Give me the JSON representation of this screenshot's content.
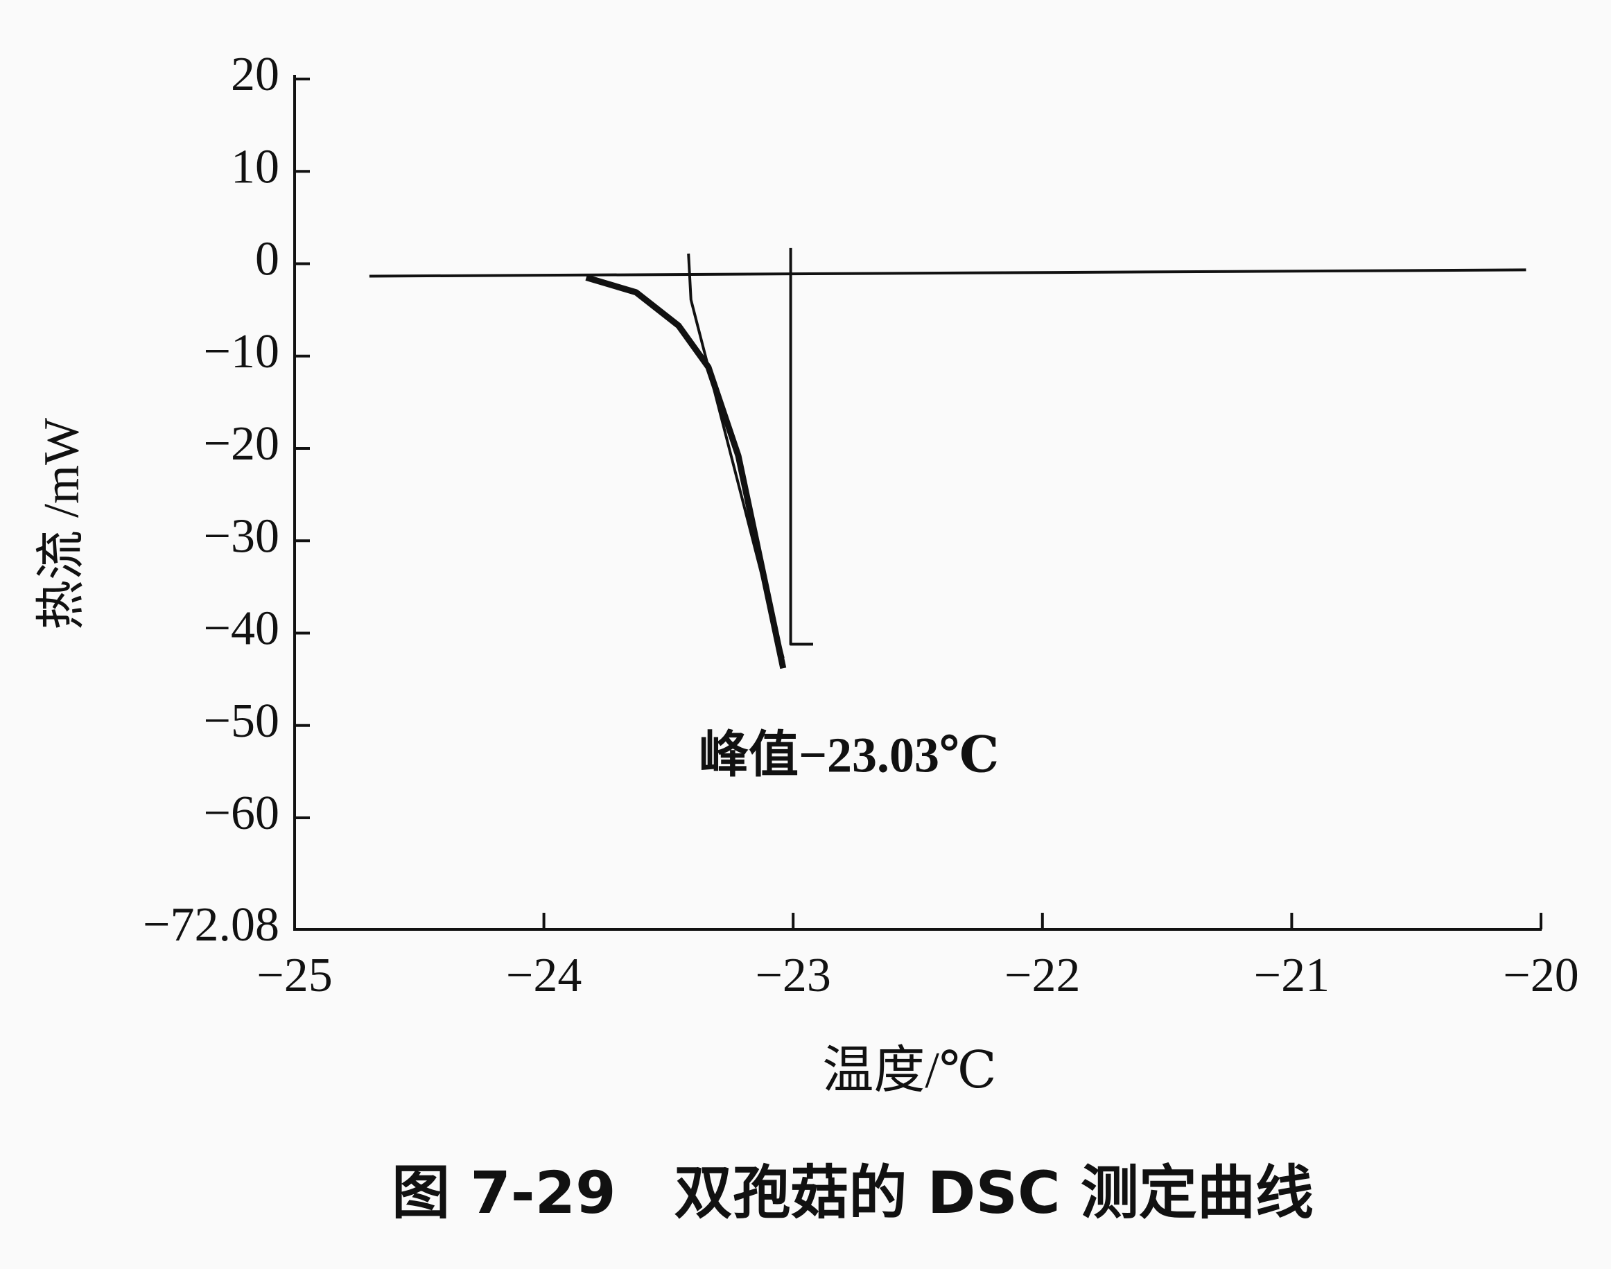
{
  "chart_data": {
    "type": "line",
    "title": "图 7-29　双孢菇的 DSC 测定曲线",
    "x_label": "温度/℃",
    "y_label": "热流 /mW",
    "annotation": "峰值−23.03℃",
    "xlim": [
      -25,
      -20
    ],
    "xticks": [
      {
        "value": -25,
        "label": "−25"
      },
      {
        "value": -24,
        "label": "−24"
      },
      {
        "value": -23,
        "label": "−23"
      },
      {
        "value": -22,
        "label": "−22"
      },
      {
        "value": -21,
        "label": "−21"
      },
      {
        "value": -20,
        "label": "−20"
      }
    ],
    "ylim": [
      -72.08,
      20
    ],
    "yticks": [
      {
        "value": -72.08,
        "label": "−72.08"
      },
      {
        "value": -60,
        "label": "−60"
      },
      {
        "value": -50,
        "label": "−50"
      },
      {
        "value": -40,
        "label": "−40"
      },
      {
        "value": -30,
        "label": "−30"
      },
      {
        "value": -20,
        "label": "−20"
      },
      {
        "value": -10,
        "label": "−10"
      },
      0,
      10,
      20
    ],
    "grid": false,
    "series": [
      {
        "color": "#111111",
        "x": [
          -24.7,
          -20.06
        ],
        "values": [
          -1.35,
          -0.67
        ]
      },
      {
        "color": "#111111",
        "x": [
          -23.83,
          -23.63,
          -23.46,
          -23.34,
          -23.22,
          -23.04
        ],
        "values": [
          -1.5,
          -3.1,
          -6.7,
          -11.2,
          -20.8,
          -43.8
        ]
      },
      {
        "color": "#111111",
        "x": [
          -23.42,
          -23.41,
          -23.04
        ],
        "values": [
          1.1,
          -3.9,
          -42.7
        ]
      },
      {
        "color": "#111111",
        "x": [
          -23.01,
          -23.01,
          -22.92
        ],
        "values": [
          1.7,
          -41.2,
          -41.2
        ]
      }
    ]
  }
}
